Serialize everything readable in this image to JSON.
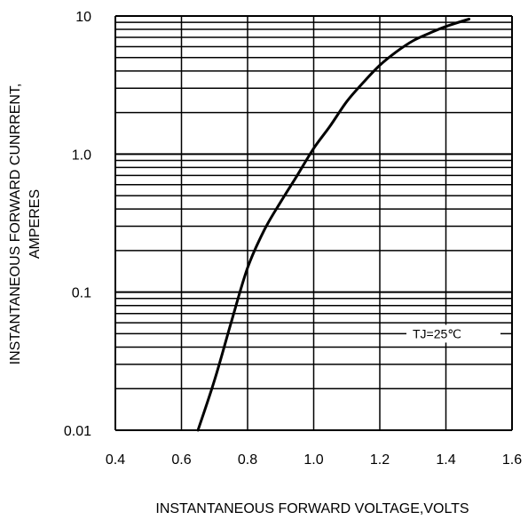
{
  "chart_data": {
    "type": "line",
    "title": "",
    "xlabel": "INSTANTANEOUS FORWARD VOLTAGE,VOLTS",
    "ylabel_lines": [
      "INSTANTANEOUS FORWARD CUNRRENT,",
      "AMPERES"
    ],
    "xlim": [
      0.4,
      1.6
    ],
    "ylim": [
      0.01,
      10
    ],
    "yscale": "log",
    "grid": true,
    "x_tick_labels": [
      "0.4",
      "0.6",
      "0.8",
      "1.0",
      "1.2",
      "1.4",
      "1.6"
    ],
    "x_tick_values": [
      0.4,
      0.6,
      0.8,
      1.0,
      1.2,
      1.4,
      1.6
    ],
    "y_tick_labels": [
      "0.01",
      "0.1",
      "1.0",
      "10"
    ],
    "y_tick_values": [
      0.01,
      0.1,
      1.0,
      10
    ],
    "annotation": "TJ=25℃",
    "series": [
      {
        "x": [
          0.65,
          0.7,
          0.75,
          0.8,
          0.85,
          0.9,
          0.95,
          1.0,
          1.05,
          1.1,
          1.15,
          1.2,
          1.25,
          1.3,
          1.35,
          1.4,
          1.47
        ],
        "y": [
          0.01,
          0.023,
          0.06,
          0.15,
          0.28,
          0.45,
          0.7,
          1.1,
          1.6,
          2.4,
          3.3,
          4.4,
          5.5,
          6.6,
          7.5,
          8.4,
          9.5
        ]
      }
    ]
  }
}
